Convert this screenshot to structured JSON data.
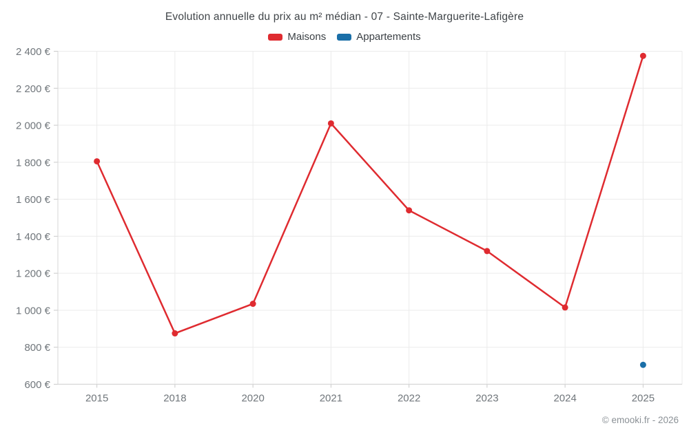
{
  "header": {
    "title": "Evolution annuelle du prix au m² médian - 07 - Sainte-Marguerite-Lafigère"
  },
  "footer": {
    "credit": "© emooki.fr - 2026"
  },
  "chart_data": {
    "type": "line",
    "title": "Evolution annuelle du prix au m² médian - 07 - Sainte-Marguerite-Lafigère",
    "categories": [
      "2015",
      "2018",
      "2020",
      "2021",
      "2022",
      "2023",
      "2024",
      "2025"
    ],
    "series": [
      {
        "name": "Maisons",
        "color": "#df2b30",
        "values": [
          1805,
          875,
          1035,
          2010,
          1540,
          1320,
          1015,
          2375
        ]
      },
      {
        "name": "Appartements",
        "color": "#1a6fa8",
        "values": [
          null,
          null,
          null,
          null,
          null,
          null,
          null,
          705
        ]
      }
    ],
    "xlabel": "",
    "ylabel": "",
    "ylabel_format": "{value} €",
    "ylim": [
      600,
      2400
    ],
    "ytick_step": 200,
    "grid": true,
    "legend_position": "top",
    "legend_entries": [
      "Maisons",
      "Appartements"
    ],
    "colors": {
      "gridline": "#ebebeb",
      "axis_line": "#d6d6d6",
      "tick": "#c9c9c9",
      "axis_label": "#70767b"
    }
  }
}
